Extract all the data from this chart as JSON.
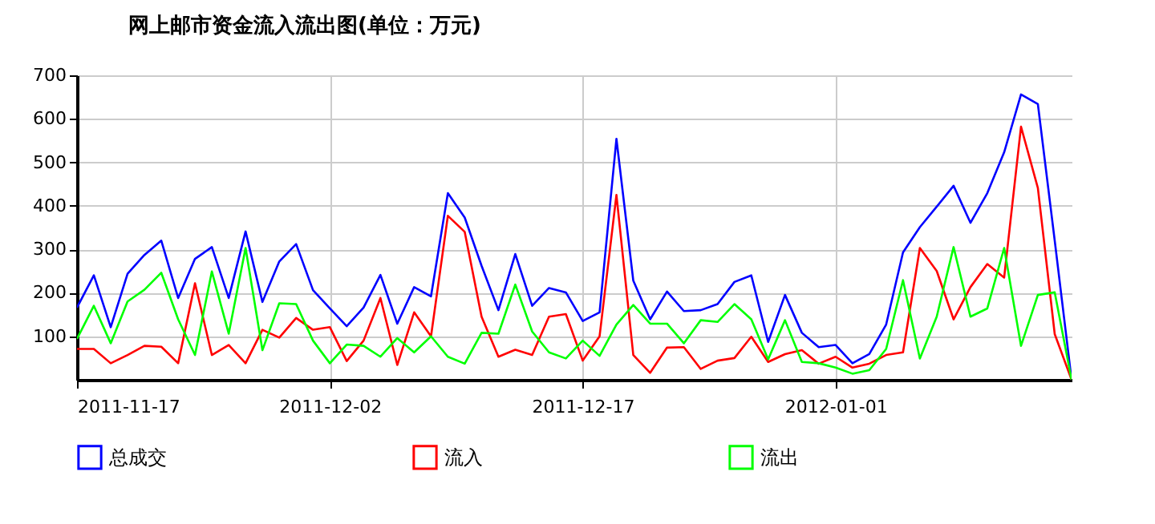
{
  "chart_data": {
    "type": "line",
    "title": "网上邮市资金流入流出图(单位：万元)",
    "x": [
      "2011-11-17",
      "2011-11-18",
      "2011-11-19",
      "2011-11-20",
      "2011-11-21",
      "2011-11-22",
      "2011-11-23",
      "2011-11-24",
      "2011-11-25",
      "2011-11-26",
      "2011-11-27",
      "2011-11-28",
      "2011-11-29",
      "2011-11-30",
      "2011-12-01",
      "2011-12-02",
      "2011-12-03",
      "2011-12-04",
      "2011-12-05",
      "2011-12-06",
      "2011-12-07",
      "2011-12-08",
      "2011-12-09",
      "2011-12-10",
      "2011-12-11",
      "2011-12-12",
      "2011-12-13",
      "2011-12-14",
      "2011-12-15",
      "2011-12-16",
      "2011-12-17",
      "2011-12-18",
      "2011-12-19",
      "2011-12-20",
      "2011-12-21",
      "2011-12-22",
      "2011-12-23",
      "2011-12-24",
      "2011-12-25",
      "2011-12-26",
      "2011-12-27",
      "2011-12-28",
      "2011-12-29",
      "2011-12-30",
      "2011-12-31",
      "2012-01-01",
      "2012-01-02",
      "2012-01-03",
      "2012-01-04",
      "2012-01-05",
      "2012-01-06",
      "2012-01-07",
      "2012-01-08",
      "2012-01-09",
      "2012-01-10",
      "2012-01-11",
      "2012-01-12",
      "2012-01-13",
      "2012-01-14",
      "2012-01-15"
    ],
    "series": [
      {
        "name": "总成交",
        "color": "#0000ff",
        "values": [
          166,
          240,
          121,
          244,
          287,
          320,
          188,
          278,
          305,
          188,
          341,
          179,
          272,
          312,
          206,
          164,
          123,
          166,
          241,
          129,
          213,
          192,
          429,
          373,
          262,
          160,
          289,
          170,
          211,
          201,
          135,
          155,
          554,
          228,
          139,
          203,
          158,
          160,
          174,
          225,
          240,
          87,
          195,
          108,
          75,
          80,
          38,
          59,
          127,
          293,
          351,
          398,
          446,
          361,
          429,
          523,
          656,
          634,
          320,
          0
        ]
      },
      {
        "name": "流入",
        "color": "#ff0000",
        "values": [
          71,
          71,
          38,
          57,
          78,
          76,
          38,
          222,
          57,
          80,
          38,
          115,
          97,
          142,
          115,
          121,
          43,
          90,
          188,
          34,
          155,
          100,
          377,
          340,
          145,
          53,
          69,
          57,
          145,
          151,
          44,
          100,
          425,
          57,
          16,
          74,
          75,
          25,
          44,
          50,
          99,
          41,
          59,
          68,
          37,
          53,
          28,
          37,
          57,
          63,
          303,
          250,
          139,
          213,
          266,
          235,
          582,
          441,
          105,
          0
        ]
      },
      {
        "name": "流出",
        "color": "#00ff00",
        "values": [
          94,
          170,
          84,
          180,
          207,
          246,
          139,
          57,
          249,
          106,
          303,
          68,
          176,
          174,
          90,
          38,
          81,
          78,
          53,
          96,
          63,
          100,
          53,
          37,
          108,
          106,
          219,
          111,
          63,
          49,
          90,
          55,
          127,
          172,
          129,
          129,
          84,
          137,
          133,
          174,
          139,
          47,
          137,
          41,
          38,
          28,
          14,
          22,
          71,
          229,
          49,
          145,
          305,
          145,
          164,
          303,
          78,
          195,
          201,
          0
        ]
      }
    ],
    "xlim": [
      "2011-11-17",
      "2012-01-15"
    ],
    "xticks": [
      "2011-11-17",
      "2011-12-02",
      "2011-12-17",
      "2012-01-01"
    ],
    "ylim": [
      0,
      700
    ],
    "yticks": [
      100,
      200,
      300,
      400,
      500,
      600,
      700
    ],
    "grid": true,
    "legend": "bottom"
  }
}
